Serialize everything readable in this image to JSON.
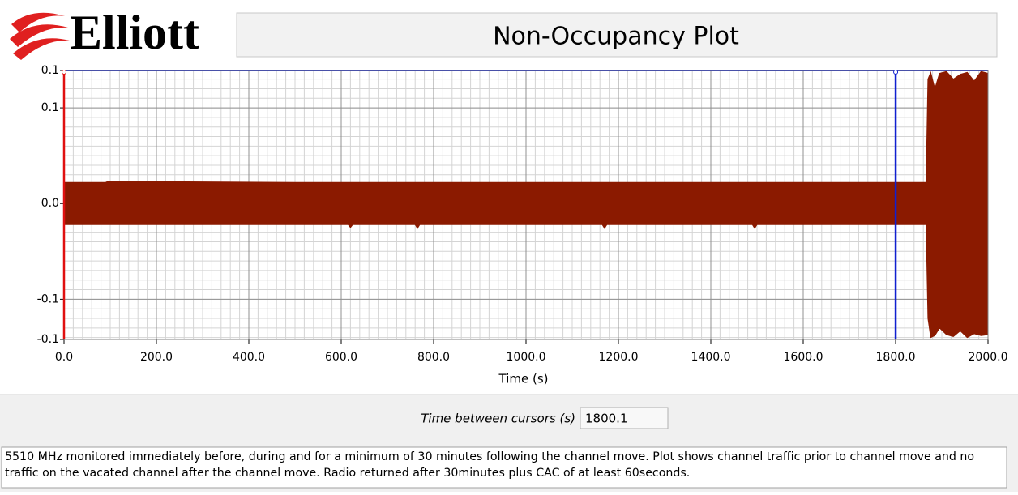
{
  "logo": "Elliott",
  "chart_data": {
    "type": "envelope",
    "title": "Non-Occupancy Plot",
    "x_label": "Time (s)",
    "color": "#8b1a00",
    "envelope": {
      "x": [
        0,
        90,
        95,
        500,
        615,
        620,
        625,
        760,
        765,
        770,
        1165,
        1170,
        1175,
        1490,
        1495,
        1500,
        1866,
        1870,
        1876,
        1885,
        1895,
        1910,
        1925,
        1940,
        1955,
        1970,
        1985,
        2000
      ],
      "max": [
        0.022,
        0.022,
        0.023,
        0.022,
        0.022,
        0.022,
        0.022,
        0.022,
        0.022,
        0.022,
        0.022,
        0.022,
        0.022,
        0.022,
        0.022,
        0.022,
        0.022,
        0.13,
        0.137,
        0.12,
        0.136,
        0.138,
        0.13,
        0.135,
        0.137,
        0.128,
        0.138,
        0.136
      ],
      "min": [
        -0.022,
        -0.022,
        -0.022,
        -0.022,
        -0.022,
        -0.025,
        -0.022,
        -0.022,
        -0.026,
        -0.022,
        -0.022,
        -0.026,
        -0.022,
        -0.022,
        -0.026,
        -0.022,
        -0.022,
        -0.12,
        -0.14,
        -0.138,
        -0.13,
        -0.137,
        -0.139,
        -0.133,
        -0.14,
        -0.136,
        -0.138,
        -0.137
      ]
    },
    "xlim": [
      0,
      2000
    ],
    "ylim": [
      -0.142,
      0.139
    ],
    "xticks": [
      {
        "value": 0,
        "label": "0.0"
      },
      {
        "value": 200,
        "label": "200.0"
      },
      {
        "value": 400,
        "label": "400.0"
      },
      {
        "value": 600,
        "label": "600.0"
      },
      {
        "value": 800,
        "label": "800.0"
      },
      {
        "value": 1000,
        "label": "1000.0"
      },
      {
        "value": 1200,
        "label": "1200.0"
      },
      {
        "value": 1400,
        "label": "1400.0"
      },
      {
        "value": 1600,
        "label": "1600.0"
      },
      {
        "value": 1800,
        "label": "1800.0"
      },
      {
        "value": 2000,
        "label": "2000.0"
      }
    ],
    "yticks": [
      {
        "value": -0.142,
        "label": "-0.1"
      },
      {
        "value": -0.1,
        "label": "-0.1"
      },
      {
        "value": 0,
        "label": "0.0"
      },
      {
        "value": 0.1,
        "label": "0.1"
      },
      {
        "value": 0.139,
        "label": "0.1"
      }
    ],
    "x_minor_step": 20,
    "y_minor_step": 0.01,
    "grid": true,
    "cursors": [
      {
        "value": 0,
        "color": "#e01010"
      },
      {
        "value": 1800.1,
        "color": "#1020d0"
      }
    ]
  },
  "readout": {
    "label": "Time between cursors (s)",
    "value": "1800.1"
  },
  "description": "5510 MHz monitored immediately before, during and for a minimum of 30 minutes following the channel move. Plot shows channel traffic prior to channel move and no traffic on the vacated channel after the channel move. Radio returned after 30minutes plus CAC of at least 60seconds."
}
